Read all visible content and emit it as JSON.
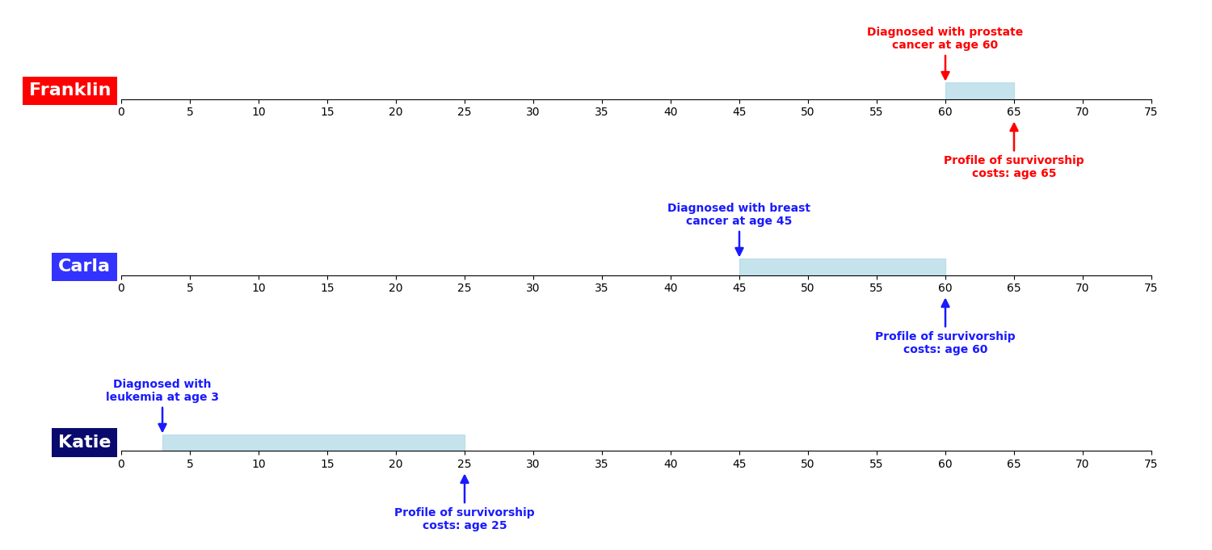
{
  "chart_data": [
    {
      "type": "timeline",
      "xlim": [
        0,
        75
      ],
      "xticks": [
        0,
        5,
        10,
        15,
        20,
        25,
        30,
        35,
        40,
        45,
        50,
        55,
        60,
        65,
        70,
        75
      ],
      "color": "#add8e6",
      "series": [
        {
          "name": "Franklin",
          "color": "#ff0000",
          "values": [
            60,
            65
          ]
        }
      ],
      "annotations": [
        {
          "text": "Diagnosed with prostate\ncancer at age 60",
          "x": 60,
          "color": "#ff0000"
        },
        {
          "text": "Profile of survivorship\ncosts: age 65",
          "x": 65,
          "color": "#ff0000"
        }
      ]
    },
    {
      "type": "timeline",
      "xlim": [
        0,
        75
      ],
      "xticks": [
        0,
        5,
        10,
        15,
        20,
        25,
        30,
        35,
        40,
        45,
        50,
        55,
        60,
        65,
        70,
        75
      ],
      "color": "#add8e6",
      "series": [
        {
          "name": "Carla",
          "color": "#3333ff",
          "values": [
            45,
            60
          ]
        }
      ],
      "annotations": [
        {
          "text": "Diagnosed with breast\ncancer at age 45",
          "x": 45,
          "color": "#1a1aff"
        },
        {
          "text": "Profile of survivorship\ncosts: age 60",
          "x": 60,
          "color": "#1a1aff"
        }
      ]
    },
    {
      "type": "timeline",
      "xlim": [
        0,
        75
      ],
      "xticks": [
        0,
        5,
        10,
        15,
        20,
        25,
        30,
        35,
        40,
        45,
        50,
        55,
        60,
        65,
        70,
        75
      ],
      "color": "#add8e6",
      "series": [
        {
          "name": "Katie",
          "color": "#0a0a6e",
          "values": [
            3,
            25
          ]
        }
      ],
      "annotations": [
        {
          "text": "Diagnosed with\nleukemia at age 3",
          "x": 3,
          "color": "#1a1aff"
        },
        {
          "text": "Profile of survivorship\ncosts: age 25",
          "x": 25,
          "color": "#1a1aff"
        }
      ]
    }
  ]
}
